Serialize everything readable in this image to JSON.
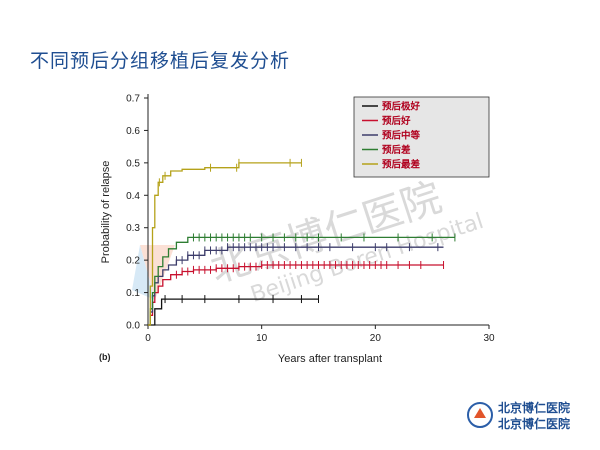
{
  "slide": {
    "title": "不同预后分组移植后复发分析",
    "panel_label": "(b)",
    "watermark_cn": "北京博仁医院",
    "watermark_en": "Beijing Boren Hospital",
    "logo_line1": "北京博仁医院",
    "logo_line2": "北京博仁医院"
  },
  "colors": {
    "title": "#1f4e91",
    "legend_text": "#b0001e",
    "legend_bg": "#e6e6e6",
    "watermark": "#d9d9d9"
  },
  "chart_data": {
    "type": "line",
    "step": true,
    "xlabel": "Years after transplant",
    "ylabel": "Probability of relapse",
    "xlim": [
      0,
      30
    ],
    "ylim": [
      0,
      0.7
    ],
    "xticks": [
      0,
      10,
      20,
      30
    ],
    "yticks": [
      0,
      0.1,
      0.2,
      0.3,
      0.4,
      0.5,
      0.6,
      0.7
    ],
    "grid": false,
    "legend": "top-right",
    "series": [
      {
        "name": "预后极好",
        "color": "#111111",
        "x": [
          0,
          0.6,
          0.6,
          1.2,
          1.2,
          15
        ],
        "y": [
          0,
          0,
          0.05,
          0.05,
          0.08,
          0.08
        ],
        "censor": [
          1.5,
          3,
          5,
          8,
          11,
          13.5,
          15
        ]
      },
      {
        "name": "预后好",
        "color": "#c8102e",
        "x": [
          0,
          0.2,
          0.4,
          0.6,
          0.9,
          1.3,
          2,
          3,
          4,
          6,
          8,
          10,
          26
        ],
        "y": [
          0,
          0.03,
          0.07,
          0.1,
          0.12,
          0.14,
          0.155,
          0.165,
          0.17,
          0.175,
          0.18,
          0.185,
          0.185
        ],
        "censor": [
          2.5,
          3,
          3.5,
          4,
          4.5,
          5,
          5.5,
          6,
          6.5,
          7,
          7.5,
          8,
          8.5,
          9,
          9.5,
          10,
          10.5,
          11,
          11.5,
          12,
          12.5,
          13,
          13.5,
          14,
          14.5,
          15,
          15.5,
          16,
          16.5,
          17,
          17.5,
          18,
          18.5,
          19,
          19.5,
          20,
          20.5,
          21,
          22,
          23,
          24,
          26
        ]
      },
      {
        "name": "预后中等",
        "color": "#3d3d6b",
        "x": [
          0,
          0.2,
          0.4,
          0.6,
          0.9,
          1.3,
          1.8,
          2.5,
          3.5,
          5,
          7,
          26
        ],
        "y": [
          0,
          0.04,
          0.09,
          0.13,
          0.15,
          0.17,
          0.185,
          0.2,
          0.215,
          0.23,
          0.24,
          0.24
        ],
        "censor": [
          2.5,
          3,
          3.5,
          4,
          4.5,
          5,
          5.5,
          6,
          6.5,
          7,
          7.5,
          8,
          8.5,
          9,
          9.5,
          10,
          10.5,
          11,
          12,
          13,
          14,
          15,
          16,
          18,
          20,
          21,
          23,
          25.5
        ]
      },
      {
        "name": "预后差",
        "color": "#2e7d32",
        "x": [
          0,
          0.2,
          0.4,
          0.6,
          0.9,
          1.3,
          1.8,
          2.5,
          3.5,
          27
        ],
        "y": [
          0,
          0.05,
          0.1,
          0.15,
          0.18,
          0.21,
          0.235,
          0.255,
          0.27,
          0.27
        ],
        "censor": [
          4,
          4.5,
          5,
          5.5,
          6,
          6.5,
          7,
          7.5,
          8,
          8.5,
          9,
          10,
          11,
          12,
          13,
          14,
          15,
          17,
          19,
          22,
          25,
          27
        ]
      },
      {
        "name": "预后最差",
        "color": "#b5a21a",
        "x": [
          0,
          0.2,
          0.4,
          0.6,
          0.9,
          1.3,
          2,
          3,
          5,
          8,
          13.5
        ],
        "y": [
          0,
          0.12,
          0.3,
          0.4,
          0.44,
          0.46,
          0.475,
          0.48,
          0.485,
          0.5,
          0.5
        ],
        "censor": [
          1,
          1.5,
          5.5,
          7.8,
          8,
          12.5,
          13.5
        ]
      }
    ]
  }
}
